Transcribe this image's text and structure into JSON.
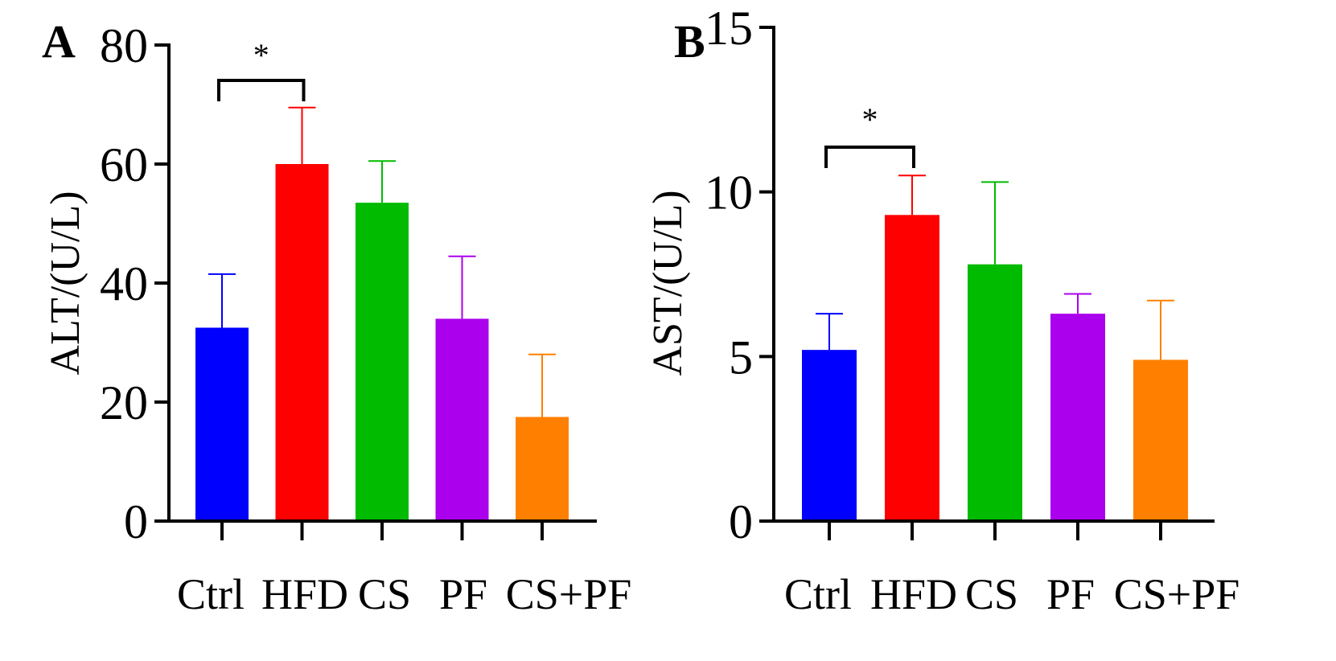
{
  "chart_data": [
    {
      "panel": "A",
      "type": "bar",
      "ylabel": "ALT/(U/L)",
      "ylim": [
        0,
        80
      ],
      "yticks": [
        "0",
        "20",
        "40",
        "60",
        "80"
      ],
      "categories": [
        "Ctrl",
        "HFD",
        "CS",
        "PF",
        "CS+PF"
      ],
      "values": [
        32.5,
        60,
        53.5,
        34,
        17.5
      ],
      "errors": [
        9,
        9.5,
        7,
        10.5,
        10.5
      ],
      "colors": [
        "#0000ff",
        "#ff0000",
        "#00bb00",
        "#aa00ee",
        "#ff8000"
      ],
      "significance": {
        "from": 0,
        "to": 1,
        "label": "*"
      }
    },
    {
      "panel": "B",
      "type": "bar",
      "ylabel": "AST/(U/L)",
      "ylim": [
        0,
        15
      ],
      "yticks": [
        "0",
        "5",
        "10",
        "15"
      ],
      "categories": [
        "Ctrl",
        "HFD",
        "CS",
        "PF",
        "CS+PF"
      ],
      "values": [
        5.2,
        9.3,
        7.8,
        6.3,
        4.9
      ],
      "errors": [
        1.1,
        1.2,
        2.5,
        0.6,
        1.8
      ],
      "colors": [
        "#0000ff",
        "#ff0000",
        "#00bb00",
        "#aa00ee",
        "#ff8000"
      ],
      "significance": {
        "from": 0,
        "to": 1,
        "label": "*"
      }
    }
  ]
}
